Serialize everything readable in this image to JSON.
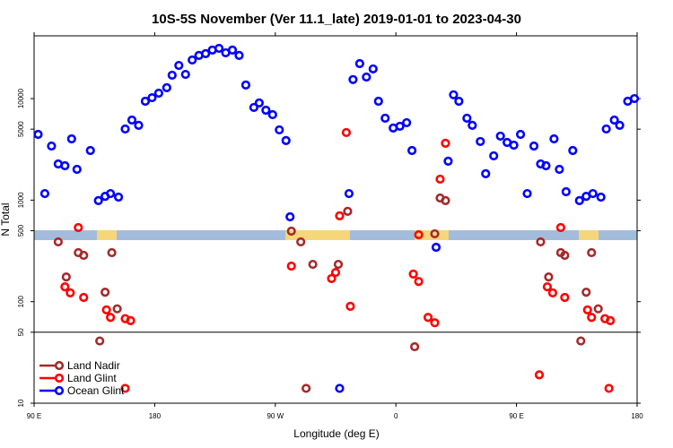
{
  "chart_data": {
    "type": "scatter",
    "title": "10S-5S November (Ver 11.1_late)   2019-01-01 to 2023-04-30",
    "xlabel": "Longitude (deg E)",
    "ylabel": "N Total",
    "xlim": [
      90,
      540
    ],
    "ylim": [
      10,
      41500
    ],
    "log_y": true,
    "xticks": [
      {
        "value": 90,
        "label": "90 E"
      },
      180,
      {
        "value": 270,
        "label": "90 W"
      },
      {
        "value": 360,
        "label": "0"
      },
      {
        "value": 450,
        "label": "90 E"
      },
      {
        "value": 540,
        "label": "180"
      }
    ],
    "yticks": [
      10,
      50,
      100,
      500,
      1000,
      5000,
      10000
    ],
    "reference_line": 50,
    "legend": "lower left",
    "series": [
      {
        "name": "Land Nadir",
        "color": "#a52a2a",
        "x": [
          108,
          114,
          123,
          127,
          143,
          148,
          152,
          139,
          289,
          282,
          298,
          317,
          324,
          374,
          389,
          393,
          397,
          468,
          474,
          483,
          486,
          502,
          506,
          511,
          498,
          293
        ],
        "values": [
          388,
          175,
          304,
          286,
          124,
          304,
          85,
          41,
          388,
          495,
          233,
          233,
          775,
          36,
          466,
          1050,
          990,
          388,
          175,
          304,
          286,
          124,
          304,
          85,
          41,
          14
        ]
      },
      {
        "name": "Land Glint",
        "color": "#ff0000",
        "x": [
          123,
          113,
          117,
          127,
          144,
          147,
          158,
          162,
          158,
          282,
          312,
          315,
          318,
          323,
          326,
          377,
          373,
          377,
          384,
          389,
          393,
          397,
          473,
          477,
          483,
          486,
          503,
          506,
          516,
          520,
          519,
          467
        ],
        "values": [
          537,
          140,
          122,
          110,
          83,
          70,
          68,
          65,
          14,
          224,
          169,
          194,
          700,
          4630,
          90,
          456,
          187,
          158,
          70,
          62,
          1610,
          3630,
          140,
          122,
          537,
          110,
          83,
          70,
          68,
          65,
          14,
          19
        ]
      },
      {
        "name": "Ocean Glint",
        "color": "#0000ff",
        "x": [
          93,
          98,
          103,
          108,
          113,
          118,
          122,
          132,
          138,
          143,
          147,
          153,
          158,
          163,
          168,
          173,
          178,
          183,
          189,
          193,
          198,
          203,
          208,
          213,
          218,
          223,
          228,
          233,
          238,
          243,
          248,
          254,
          258,
          263,
          268,
          273,
          278,
          281,
          318,
          325,
          328,
          333,
          338,
          343,
          347,
          352,
          358,
          363,
          368,
          372,
          390,
          399,
          403,
          407,
          413,
          417,
          423,
          427,
          433,
          438,
          443,
          448,
          453,
          458,
          463,
          468,
          472,
          478,
          482,
          487,
          492,
          497,
          502,
          507,
          513,
          517,
          523,
          527,
          533,
          538
        ],
        "values": [
          4440,
          1160,
          3410,
          2270,
          2180,
          4010,
          2010,
          3080,
          990,
          1090,
          1160,
          1070,
          5020,
          6150,
          5450,
          9420,
          10200,
          11300,
          12800,
          17000,
          21200,
          17300,
          24000,
          26600,
          27700,
          30060,
          31260,
          28250,
          30060,
          26600,
          13600,
          8180,
          9060,
          7690,
          6950,
          4920,
          3860,
          685,
          14,
          1160,
          15400,
          22100,
          16300,
          19600,
          9420,
          6410,
          5130,
          5340,
          5790,
          3080,
          343,
          2420,
          10900,
          9420,
          6410,
          5450,
          3780,
          1820,
          2730,
          4270,
          3700,
          3480,
          4440,
          1160,
          3410,
          2270,
          2180,
          4010,
          2010,
          1210,
          3080,
          990,
          1090,
          1160,
          1070,
          5020,
          6150,
          5450,
          9420,
          10000
        ]
      }
    ]
  }
}
